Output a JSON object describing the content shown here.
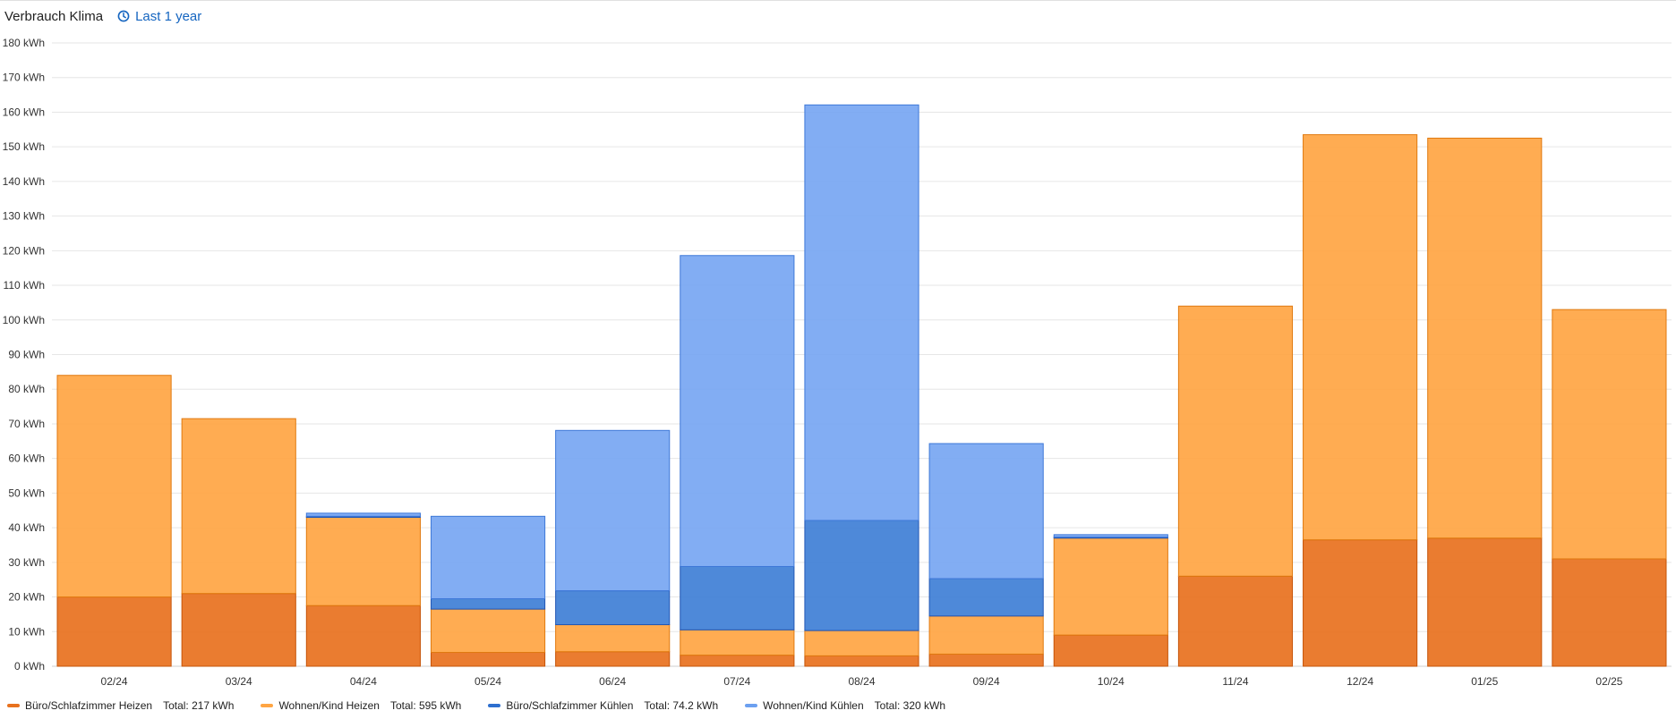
{
  "header": {
    "title": "Verbrauch Klima",
    "period_label": "Last 1 year",
    "period_icon": "clock-icon"
  },
  "legend": [
    {
      "label": "Büro/Schlafzimmer Heizen",
      "total": "Total: 217 kWh",
      "color": "#E8711E"
    },
    {
      "label": "Wohnen/Kind Heizen",
      "total": "Total: 595 kWh",
      "color": "#FFA543"
    },
    {
      "label": "Büro/Schlafzimmer Kühlen",
      "total": "Total: 74.2 kWh",
      "color": "#2E6FCF"
    },
    {
      "label": "Wohnen/Kind Kühlen",
      "total": "Total: 320 kWh",
      "color": "#6CA0F0"
    }
  ],
  "chart_data": {
    "type": "bar",
    "stacked": true,
    "categories": [
      "02/24",
      "03/24",
      "04/24",
      "05/24",
      "06/24",
      "07/24",
      "08/24",
      "09/24",
      "10/24",
      "11/24",
      "12/24",
      "01/25",
      "02/25"
    ],
    "yticks": [
      "0 kWh",
      "10 kWh",
      "20 kWh",
      "30 kWh",
      "40 kWh",
      "50 kWh",
      "60 kWh",
      "70 kWh",
      "80 kWh",
      "90 kWh",
      "100 kWh",
      "110 kWh",
      "120 kWh",
      "130 kWh",
      "140 kWh",
      "150 kWh",
      "160 kWh",
      "170 kWh",
      "180 kWh"
    ],
    "ylim": [
      0,
      180
    ],
    "grid": true,
    "legend_position": "bottom",
    "series": [
      {
        "name": "Büro/Schlafzimmer Heizen",
        "color": "#E8711E",
        "border": "#C65408",
        "values": [
          20,
          21,
          17.5,
          4,
          4.2,
          3.2,
          3,
          3.5,
          9,
          26,
          36.5,
          37,
          31
        ]
      },
      {
        "name": "Wohnen/Kind Heizen",
        "color": "#FFA543",
        "border": "#E07A10",
        "values": [
          64,
          50.5,
          25.5,
          12.5,
          7.8,
          7.3,
          7.3,
          11,
          28,
          78,
          117,
          115.5,
          72
        ]
      },
      {
        "name": "Büro/Schlafzimmer Kühlen",
        "color": "#3F7FD6",
        "border": "#2257B5",
        "values": [
          0,
          0,
          0.3,
          3,
          9.8,
          18.3,
          31.8,
          10.8,
          0.3,
          0,
          0,
          0,
          0
        ]
      },
      {
        "name": "Wohnen/Kind Kühlen",
        "color": "#77A6F2",
        "border": "#3E78D8",
        "values": [
          0,
          0,
          0.9,
          23.8,
          46.3,
          89.8,
          120,
          39,
          0.7,
          0,
          0,
          0,
          0
        ]
      }
    ]
  }
}
